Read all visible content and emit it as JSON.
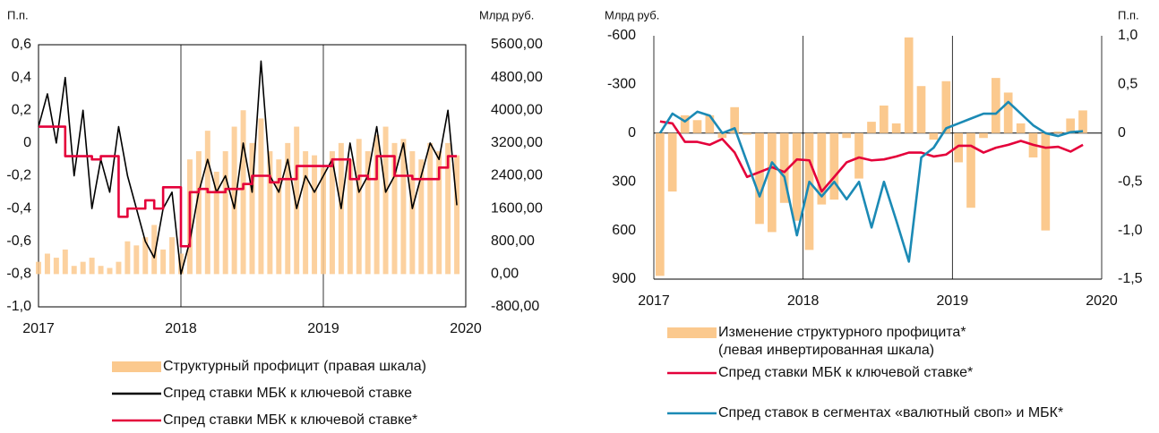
{
  "chart_data": [
    {
      "type": "combo",
      "y_label": "П.п.",
      "y2_label": "Млрд руб.",
      "xlim": [
        2017,
        2020
      ],
      "xticks": [
        2017,
        2018,
        2019,
        2020
      ],
      "ylim": [
        -1.0,
        0.6
      ],
      "yticks": [
        {
          "value": 0.6,
          "label": "0,6"
        },
        {
          "value": 0.4,
          "label": "0,4"
        },
        {
          "value": 0.2,
          "label": "0,2"
        },
        0,
        {
          "value": -0.2,
          "label": "-0,2"
        },
        {
          "value": -0.4,
          "label": "-0,4"
        },
        {
          "value": -0.6,
          "label": "-0,6"
        },
        {
          "value": -0.8,
          "label": "-0,8"
        },
        {
          "value": -1.0,
          "label": "-1,0"
        }
      ],
      "y2lim": [
        -800,
        5600
      ],
      "y2ticks": [
        {
          "value": 5600,
          "label": "5600,00"
        },
        {
          "value": 4800,
          "label": "4800,00"
        },
        {
          "value": 4000,
          "label": "4000,00"
        },
        {
          "value": 3200,
          "label": "3200,00"
        },
        {
          "value": 2400,
          "label": "2400,00"
        },
        {
          "value": 1600,
          "label": "1600,00"
        },
        {
          "value": 800,
          "label": "800,00"
        },
        {
          "value": 0,
          "label": "0,00"
        },
        {
          "value": -800,
          "label": "-800,00"
        }
      ],
      "frame": true,
      "vgrid": true,
      "x": [
        2017,
        2017.0625,
        2017.125,
        2017.1875,
        2017.25,
        2017.3125,
        2017.375,
        2017.4375,
        2017.5,
        2017.5625,
        2017.625,
        2017.6875,
        2017.75,
        2017.8125,
        2017.875,
        2017.9375,
        2018,
        2018.0625,
        2018.125,
        2018.1875,
        2018.25,
        2018.3125,
        2018.375,
        2018.4375,
        2018.5,
        2018.5625,
        2018.625,
        2018.6875,
        2018.75,
        2018.8125,
        2018.875,
        2018.9375,
        2019,
        2019.0625,
        2019.125,
        2019.1875,
        2019.25,
        2019.3125,
        2019.375,
        2019.4375,
        2019.5,
        2019.5625,
        2019.625,
        2019.6875,
        2019.75,
        2019.8125,
        2019.875,
        2019.9375
      ],
      "series": [
        {
          "name": "Структурный профицит (правая шкала)",
          "type": "bar",
          "axis": "y2",
          "color": "#fbc98e",
          "values": [
            300,
            500,
            400,
            600,
            200,
            300,
            400,
            200,
            150,
            300,
            800,
            700,
            900,
            1200,
            600,
            900,
            500,
            2800,
            3000,
            3500,
            2500,
            3000,
            3600,
            4000,
            3200,
            3800,
            3000,
            2800,
            3200,
            3600,
            3000,
            2900,
            2600,
            3000,
            3200,
            2800,
            3300,
            3000,
            3400,
            3600,
            3200,
            3300,
            3000,
            2800,
            3200,
            3000,
            3200,
            2900
          ]
        },
        {
          "name": "Спред ставки МБК к ключевой ставке",
          "type": "line",
          "color": "#000000",
          "values": [
            0.1,
            0.3,
            0.0,
            0.4,
            -0.2,
            0.2,
            -0.4,
            -0.1,
            -0.3,
            0.1,
            -0.2,
            -0.4,
            -0.6,
            -0.7,
            -0.4,
            -0.3,
            -0.8,
            -0.6,
            -0.3,
            -0.1,
            -0.3,
            -0.2,
            -0.4,
            0.0,
            -0.3,
            0.5,
            -0.2,
            -0.3,
            -0.1,
            -0.4,
            -0.2,
            -0.3,
            -0.2,
            -0.1,
            -0.4,
            0.0,
            -0.3,
            -0.2,
            0.1,
            -0.3,
            -0.2,
            0.0,
            -0.4,
            -0.2,
            0.0,
            -0.1,
            0.2,
            -0.38
          ]
        },
        {
          "name": "Спред ставки МБК к ключевой ставке*",
          "type": "step",
          "color": "#e4003a",
          "values": [
            0.1,
            0.1,
            0.1,
            -0.08,
            -0.08,
            -0.08,
            -0.1,
            -0.08,
            -0.08,
            -0.45,
            -0.4,
            -0.4,
            -0.35,
            -0.4,
            -0.27,
            -0.27,
            -0.63,
            -0.3,
            -0.28,
            -0.3,
            -0.3,
            -0.28,
            -0.28,
            -0.25,
            -0.2,
            -0.2,
            -0.24,
            -0.22,
            -0.22,
            -0.14,
            -0.14,
            -0.14,
            -0.14,
            -0.1,
            -0.1,
            -0.22,
            -0.2,
            -0.22,
            -0.08,
            -0.08,
            -0.2,
            -0.2,
            -0.22,
            -0.22,
            -0.22,
            -0.15,
            -0.08,
            -0.08
          ]
        }
      ]
    },
    {
      "type": "combo",
      "y_label": "Млрд руб.",
      "y2_label": "П.п.",
      "xlim": [
        2017,
        2020
      ],
      "xticks": [
        2017,
        2018,
        2019,
        2020
      ],
      "ylim": [
        -600,
        900
      ],
      "y_inverted": true,
      "yticks": [
        -600,
        -300,
        0,
        300,
        600,
        900
      ],
      "y2lim": [
        -1.5,
        1.0
      ],
      "y2ticks": [
        {
          "value": 1.0,
          "label": "1,0"
        },
        {
          "value": 0.5,
          "label": "0,5"
        },
        0,
        {
          "value": -0.5,
          "label": "-0,5"
        },
        {
          "value": -1.0,
          "label": "-1,0"
        },
        {
          "value": -1.5,
          "label": "-1,5"
        }
      ],
      "frame": false,
      "vgrid": true,
      "x": [
        2017,
        2017.083,
        2017.167,
        2017.25,
        2017.333,
        2017.417,
        2017.5,
        2017.583,
        2017.667,
        2017.75,
        2017.833,
        2017.917,
        2018,
        2018.083,
        2018.167,
        2018.25,
        2018.333,
        2018.417,
        2018.5,
        2018.583,
        2018.667,
        2018.75,
        2018.833,
        2018.917,
        2019,
        2019.083,
        2019.167,
        2019.25,
        2019.333,
        2019.417,
        2019.5,
        2019.583,
        2019.667,
        2019.75,
        2019.833
      ],
      "series": [
        {
          "name": "Изменение структурного профицита*\n(левая инвертированная шкала)",
          "type": "bar",
          "color": "#fbc98e",
          "values": [
            880,
            360,
            -110,
            -80,
            -110,
            30,
            -160,
            10,
            560,
            610,
            430,
            540,
            720,
            440,
            410,
            30,
            280,
            -70,
            -170,
            -60,
            -590,
            -290,
            40,
            -320,
            180,
            460,
            30,
            -340,
            -250,
            -60,
            150,
            600,
            -10,
            -90,
            -140
          ]
        },
        {
          "name": "Спред ставки МБК к ключевой ставке*",
          "type": "line",
          "axis": "y2",
          "color": "#e4003a",
          "values": [
            0.12,
            0.1,
            -0.09,
            -0.09,
            -0.12,
            -0.06,
            -0.2,
            -0.45,
            -0.4,
            -0.35,
            -0.4,
            -0.27,
            -0.28,
            -0.6,
            -0.45,
            -0.3,
            -0.25,
            -0.28,
            -0.27,
            -0.24,
            -0.2,
            -0.2,
            -0.24,
            -0.22,
            -0.13,
            -0.13,
            -0.2,
            -0.15,
            -0.12,
            -0.08,
            -0.12,
            -0.15,
            -0.14,
            -0.19,
            -0.12
          ]
        },
        {
          "name": "Спред ставок в сегментах «валютный своп» и МБК*",
          "type": "line",
          "axis": "y2",
          "color": "#1b8ab5",
          "values": [
            0.0,
            0.2,
            0.12,
            0.22,
            0.18,
            0.0,
            0.05,
            -0.3,
            -0.65,
            -0.3,
            -0.45,
            -1.05,
            -0.5,
            -0.65,
            -0.5,
            -0.68,
            -0.5,
            -0.97,
            -0.5,
            -0.9,
            -1.32,
            -0.25,
            -0.15,
            0.05,
            0.1,
            0.15,
            0.2,
            0.2,
            0.32,
            0.2,
            0.08,
            0.0,
            -0.03,
            0.01,
            0.02
          ]
        }
      ]
    }
  ]
}
